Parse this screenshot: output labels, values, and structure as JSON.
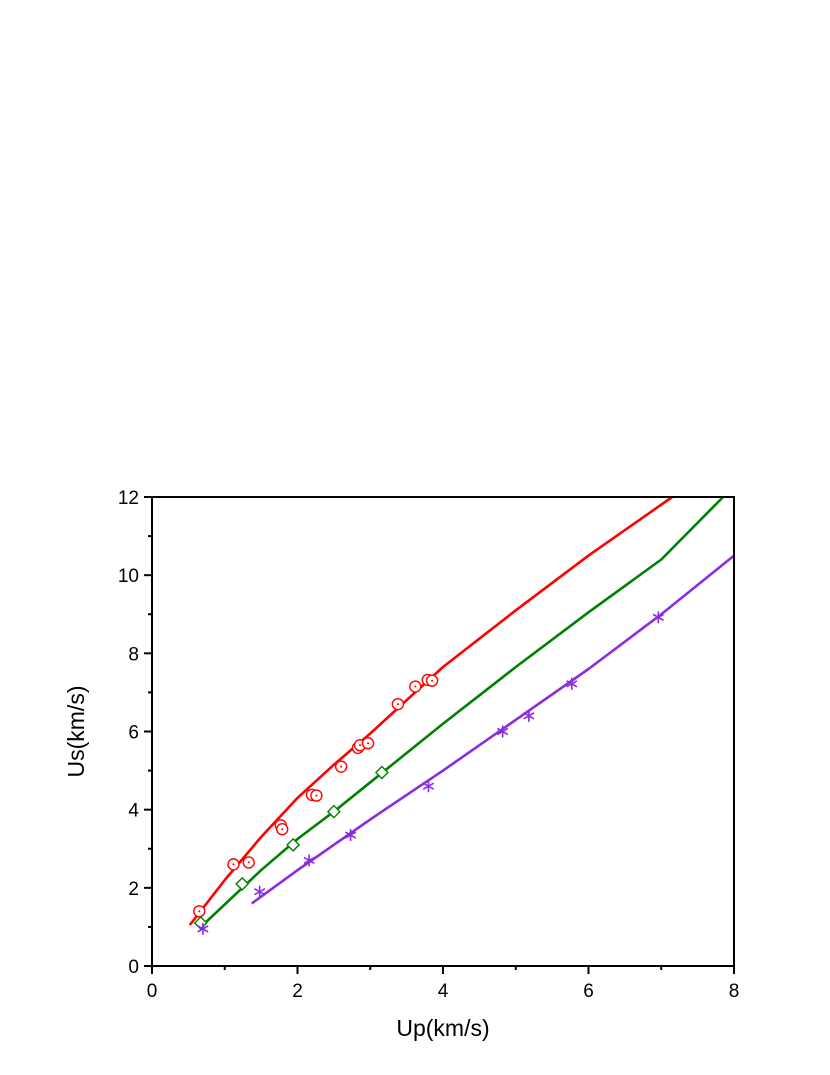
{
  "chart_data": {
    "type": "scatter",
    "title": "",
    "xlabel": "Up(km/s)",
    "ylabel": "Us(km/s)",
    "xlim": [
      0,
      8
    ],
    "ylim": [
      0,
      12
    ],
    "x_ticks": [
      0,
      2,
      4,
      6,
      8
    ],
    "y_ticks": [
      0,
      2,
      4,
      6,
      8,
      10,
      12
    ],
    "grid": false,
    "legend": "none",
    "series": [
      {
        "color": "#ff0000",
        "marker": "circle-dot",
        "points": [
          [
            0.65,
            1.4
          ],
          [
            1.12,
            2.6
          ],
          [
            1.33,
            2.65
          ],
          [
            1.77,
            3.6
          ],
          [
            1.79,
            3.5
          ],
          [
            2.2,
            4.38
          ],
          [
            2.26,
            4.36
          ],
          [
            2.6,
            5.1
          ],
          [
            2.83,
            5.58
          ],
          [
            2.86,
            5.65
          ],
          [
            2.97,
            5.7
          ],
          [
            3.38,
            6.7
          ],
          [
            3.62,
            7.15
          ],
          [
            3.79,
            7.32
          ],
          [
            3.85,
            7.3
          ]
        ],
        "fit": [
          [
            0.52,
            1.05
          ],
          [
            1.0,
            2.2
          ],
          [
            1.5,
            3.3
          ],
          [
            2.0,
            4.3
          ],
          [
            2.5,
            5.15
          ],
          [
            3.0,
            5.95
          ],
          [
            3.5,
            6.8
          ],
          [
            4.0,
            7.65
          ],
          [
            5.0,
            9.1
          ],
          [
            6.0,
            10.5
          ],
          [
            7.15,
            12.0
          ]
        ]
      },
      {
        "color": "#008000",
        "marker": "diamond",
        "points": [
          [
            0.67,
            1.1
          ],
          [
            1.24,
            2.1
          ],
          [
            1.94,
            3.1
          ],
          [
            2.5,
            3.95
          ],
          [
            3.16,
            4.95
          ]
        ],
        "fit": [
          [
            0.7,
            1.05
          ],
          [
            1.5,
            2.45
          ],
          [
            2.0,
            3.25
          ],
          [
            2.5,
            3.95
          ],
          [
            3.0,
            4.7
          ],
          [
            4.0,
            6.2
          ],
          [
            5.0,
            7.65
          ],
          [
            6.0,
            9.05
          ],
          [
            7.0,
            10.4
          ],
          [
            7.85,
            12.0
          ]
        ]
      },
      {
        "color": "#8b2be2",
        "marker": "asterisk",
        "points": [
          [
            0.7,
            0.95
          ],
          [
            1.48,
            1.9
          ],
          [
            2.16,
            2.7
          ],
          [
            2.73,
            3.35
          ],
          [
            3.8,
            4.6
          ],
          [
            4.82,
            6.0
          ],
          [
            5.18,
            6.4
          ],
          [
            5.77,
            7.22
          ],
          [
            6.96,
            8.92
          ]
        ],
        "fit": [
          [
            1.37,
            1.6
          ],
          [
            2.0,
            2.45
          ],
          [
            3.0,
            3.75
          ],
          [
            4.0,
            5.0
          ],
          [
            5.0,
            6.3
          ],
          [
            6.0,
            7.6
          ],
          [
            7.0,
            9.0
          ],
          [
            8.0,
            10.5
          ]
        ]
      }
    ]
  }
}
